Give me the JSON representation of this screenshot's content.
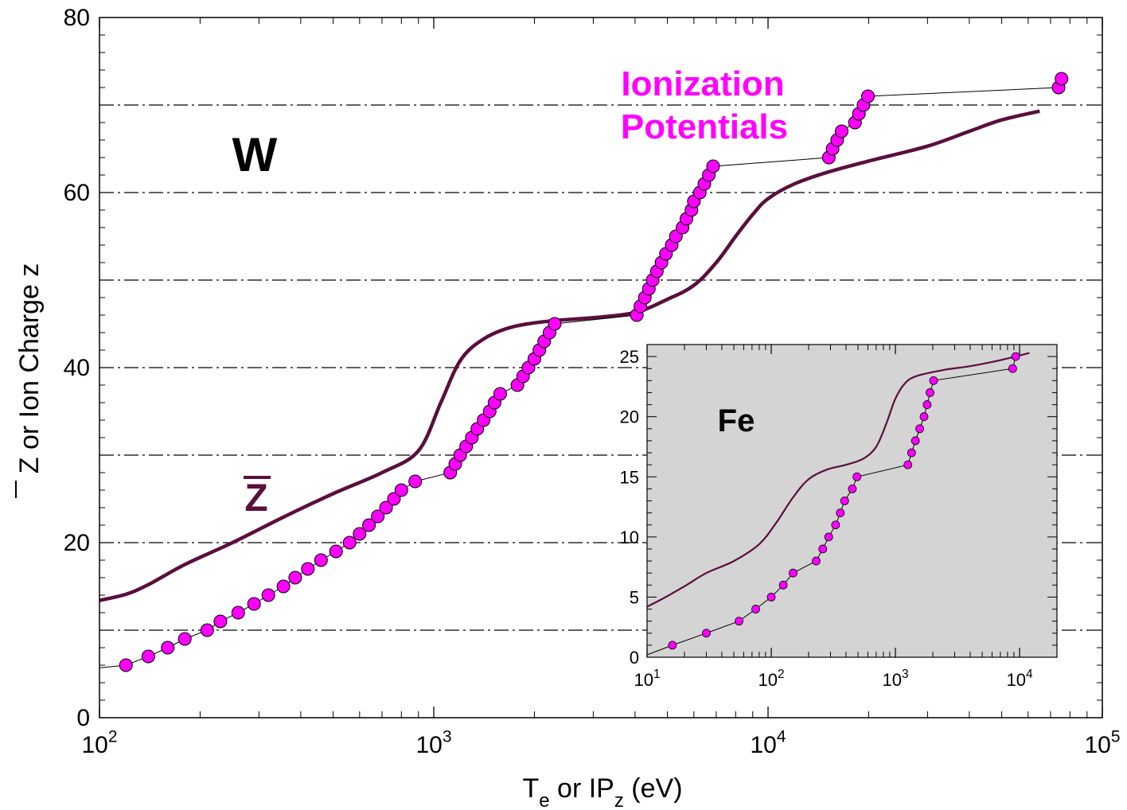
{
  "chart_data": {
    "type": "scatter",
    "xscale": "log",
    "xlabel": {
      "main": "T",
      "sub1": "e",
      "mid": " or IP",
      "sub2": "z",
      "tail": " (eV)"
    },
    "ylabel": {
      "bar": "Z",
      "rest": " or Ion Charge z"
    },
    "xlim": [
      100,
      100000
    ],
    "ylim": [
      0,
      80
    ],
    "yticks": [
      0,
      20,
      40,
      60,
      80
    ],
    "xticks": [
      {
        "value": 100,
        "base": "10",
        "exp": "2"
      },
      {
        "value": 1000,
        "base": "10",
        "exp": "3"
      },
      {
        "value": 10000,
        "base": "10",
        "exp": "4"
      },
      {
        "value": 100000,
        "base": "10",
        "exp": "5"
      }
    ],
    "grid": "dashed horizontal every 10",
    "colors": {
      "zbar": "#5a0f3c",
      "ip_marker": "#ff00ff",
      "ip_line": "#000000",
      "ip_label": "#ff00ff"
    },
    "annotations": {
      "element": "W",
      "zbar_label": "Z",
      "ip_label_line1": "Ionization",
      "ip_label_line2": "Potentials"
    },
    "series": [
      {
        "kind": "zbar-curve",
        "points": [
          [
            100,
            13.4
          ],
          [
            120,
            14.1
          ],
          [
            140,
            15.2
          ],
          [
            180,
            17.5
          ],
          [
            250,
            20
          ],
          [
            350,
            22.8
          ],
          [
            500,
            25.6
          ],
          [
            700,
            28
          ],
          [
            900,
            30.5
          ],
          [
            1050,
            36
          ],
          [
            1200,
            40.8
          ],
          [
            1400,
            43.2
          ],
          [
            1700,
            44.6
          ],
          [
            2200,
            45.3
          ],
          [
            3000,
            45.7
          ],
          [
            4000,
            46.3
          ],
          [
            5000,
            47.8
          ],
          [
            6000,
            49.4
          ],
          [
            7000,
            52
          ],
          [
            8000,
            55
          ],
          [
            9000,
            57.5
          ],
          [
            10000,
            59.3
          ],
          [
            12000,
            61
          ],
          [
            15000,
            62.3
          ],
          [
            20000,
            63.6
          ],
          [
            30000,
            65.3
          ],
          [
            40000,
            67
          ],
          [
            50000,
            68.3
          ],
          [
            65000,
            69.3
          ]
        ]
      },
      {
        "kind": "ionization-potentials",
        "points": [
          [
            120,
            6
          ],
          [
            140,
            7
          ],
          [
            160,
            8
          ],
          [
            180,
            9
          ],
          [
            210,
            10
          ],
          [
            230,
            11
          ],
          [
            260,
            12
          ],
          [
            290,
            13
          ],
          [
            320,
            14
          ],
          [
            355,
            15
          ],
          [
            385,
            16
          ],
          [
            420,
            17
          ],
          [
            460,
            18
          ],
          [
            510,
            19
          ],
          [
            560,
            20
          ],
          [
            600,
            21
          ],
          [
            640,
            22
          ],
          [
            680,
            23
          ],
          [
            720,
            24
          ],
          [
            760,
            25
          ],
          [
            800,
            26
          ],
          [
            880,
            27
          ],
          [
            1120,
            28
          ],
          [
            1160,
            29
          ],
          [
            1200,
            30
          ],
          [
            1250,
            31
          ],
          [
            1300,
            32
          ],
          [
            1350,
            33
          ],
          [
            1410,
            34
          ],
          [
            1470,
            35
          ],
          [
            1520,
            36
          ],
          [
            1580,
            37
          ],
          [
            1780,
            38
          ],
          [
            1850,
            39
          ],
          [
            1920,
            40
          ],
          [
            2000,
            41
          ],
          [
            2070,
            42
          ],
          [
            2140,
            43
          ],
          [
            2220,
            44
          ],
          [
            2300,
            45
          ],
          [
            4050,
            46
          ],
          [
            4150,
            47
          ],
          [
            4280,
            48
          ],
          [
            4400,
            49
          ],
          [
            4520,
            50
          ],
          [
            4650,
            51
          ],
          [
            4800,
            52
          ],
          [
            4950,
            53
          ],
          [
            5150,
            54
          ],
          [
            5300,
            55
          ],
          [
            5550,
            56
          ],
          [
            5700,
            57
          ],
          [
            5900,
            58
          ],
          [
            6000,
            59
          ],
          [
            6250,
            60
          ],
          [
            6450,
            61
          ],
          [
            6650,
            62
          ],
          [
            6850,
            63
          ],
          [
            15200,
            64
          ],
          [
            15600,
            65
          ],
          [
            16100,
            66
          ],
          [
            16600,
            67
          ],
          [
            18200,
            68
          ],
          [
            18700,
            69
          ],
          [
            19300,
            70
          ],
          [
            19900,
            71
          ],
          [
            74000,
            72
          ],
          [
            75500,
            73
          ]
        ]
      }
    ],
    "inset": {
      "xlim": [
        10,
        20000
      ],
      "ylim": [
        0,
        26
      ],
      "xscale": "log",
      "yticks": [
        0,
        5,
        10,
        15,
        20,
        25
      ],
      "xticks": [
        {
          "value": 10,
          "base": "10",
          "exp": "1"
        },
        {
          "value": 100,
          "base": "10",
          "exp": "2"
        },
        {
          "value": 1000,
          "base": "10",
          "exp": "3"
        },
        {
          "value": 10000,
          "base": "10",
          "exp": "4"
        }
      ],
      "background": "#d4d4d4",
      "label": "Fe",
      "zbar": [
        [
          10,
          4.2
        ],
        [
          13,
          4.8
        ],
        [
          20,
          5.9
        ],
        [
          30,
          7
        ],
        [
          50,
          8
        ],
        [
          80,
          9.4
        ],
        [
          110,
          11.2
        ],
        [
          150,
          13.3
        ],
        [
          200,
          14.8
        ],
        [
          280,
          15.6
        ],
        [
          400,
          16
        ],
        [
          550,
          16.5
        ],
        [
          700,
          17.5
        ],
        [
          850,
          19.5
        ],
        [
          1000,
          21.5
        ],
        [
          1200,
          22.8
        ],
        [
          1500,
          23.4
        ],
        [
          2500,
          23.9
        ],
        [
          4000,
          24.2
        ],
        [
          7000,
          24.7
        ],
        [
          12000,
          25.3
        ]
      ],
      "ip": [
        [
          16,
          1
        ],
        [
          30,
          2
        ],
        [
          55,
          3
        ],
        [
          75,
          4
        ],
        [
          100,
          5
        ],
        [
          125,
          6
        ],
        [
          150,
          7
        ],
        [
          230,
          8
        ],
        [
          260,
          9
        ],
        [
          290,
          10
        ],
        [
          330,
          11
        ],
        [
          360,
          12
        ],
        [
          390,
          13
        ],
        [
          450,
          14
        ],
        [
          490,
          15
        ],
        [
          1260,
          16
        ],
        [
          1350,
          17
        ],
        [
          1450,
          18
        ],
        [
          1570,
          19
        ],
        [
          1700,
          20
        ],
        [
          1800,
          21
        ],
        [
          1900,
          22
        ],
        [
          2030,
          23
        ],
        [
          8800,
          24
        ],
        [
          9300,
          25
        ]
      ]
    }
  }
}
